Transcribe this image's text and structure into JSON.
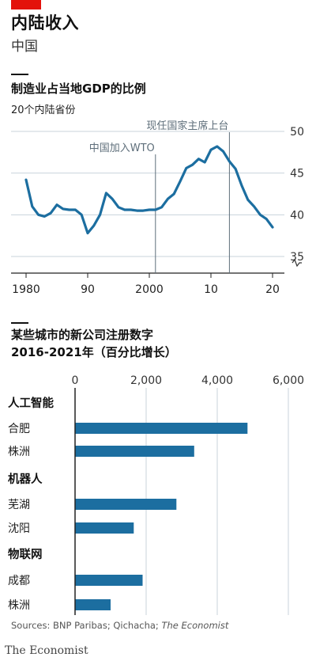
{
  "header": {
    "title": "内陆收入",
    "subtitle": "中国"
  },
  "chart1": {
    "title": "制造业占当地GDP的比例",
    "subtitle": "20个内陆省份"
  },
  "chart2": {
    "title_line1": "某些城市的新公司注册数字",
    "title_line2": "2016-2021年（百分比增长）"
  },
  "footer": {
    "sources_prefix": "Sources: BNP Paribas; Qichacha; ",
    "sources_italic": "The Economist",
    "brand": "The Economist"
  },
  "colors": {
    "brand_red": "#e3120b",
    "series": "#1c6ea0",
    "grid": "#c8d3db",
    "annotation": "#5f6f7b"
  },
  "chart_data": [
    {
      "type": "line",
      "title": "制造业占当地GDP的比例",
      "subtitle": "20个内陆省份",
      "x": [
        1980,
        1981,
        1982,
        1983,
        1984,
        1985,
        1986,
        1987,
        1988,
        1989,
        1990,
        1991,
        1992,
        1993,
        1994,
        1995,
        1996,
        1997,
        1998,
        1999,
        2000,
        2001,
        2002,
        2003,
        2004,
        2005,
        2006,
        2007,
        2008,
        2009,
        2010,
        2011,
        2012,
        2013,
        2014,
        2015,
        2016,
        2017,
        2018,
        2019,
        2020
      ],
      "y": [
        44.2,
        41.0,
        40.0,
        39.8,
        40.2,
        41.2,
        40.7,
        40.6,
        40.6,
        40.0,
        37.8,
        38.7,
        40.0,
        42.6,
        41.9,
        40.9,
        40.6,
        40.6,
        40.5,
        40.5,
        40.6,
        40.6,
        40.9,
        41.9,
        42.5,
        44.0,
        45.6,
        46.0,
        46.7,
        46.3,
        47.8,
        48.2,
        47.6,
        46.4,
        45.5,
        43.5,
        41.8,
        41.0,
        40.0,
        39.5,
        38.5
      ],
      "x_ticks": [
        "1980",
        "90",
        "2000",
        "10",
        "20"
      ],
      "x_tick_values": [
        1980,
        1990,
        2000,
        2010,
        2020
      ],
      "y_ticks": [
        "35",
        "40",
        "45",
        "50"
      ],
      "y_tick_values": [
        35,
        40,
        45,
        50
      ],
      "xlim": [
        1980,
        2020
      ],
      "ylim": [
        33,
        52
      ],
      "y_axis_broken": true,
      "grid": true,
      "annotations": [
        {
          "label": "中国加入WTO",
          "x": 2001
        },
        {
          "label": "现任国家主席上台",
          "x": 2013
        }
      ]
    },
    {
      "type": "bar",
      "orientation": "horizontal",
      "title": "某些城市的新公司注册数字 2016-2021年（百分比增长）",
      "x_ticks": [
        "0",
        "2,000",
        "4,000",
        "6,000"
      ],
      "x_tick_values": [
        0,
        2000,
        4000,
        6000
      ],
      "xlim": [
        0,
        6000
      ],
      "grid": true,
      "groups": [
        {
          "name": "人工智能",
          "items": [
            {
              "label": "合肥",
              "value": 4850
            },
            {
              "label": "株洲",
              "value": 3350
            }
          ]
        },
        {
          "name": "机器人",
          "items": [
            {
              "label": "芜湖",
              "value": 2850
            },
            {
              "label": "沈阳",
              "value": 1650
            }
          ]
        },
        {
          "name": "物联网",
          "items": [
            {
              "label": "成都",
              "value": 1900
            },
            {
              "label": "株洲",
              "value": 1000
            }
          ]
        }
      ]
    }
  ]
}
